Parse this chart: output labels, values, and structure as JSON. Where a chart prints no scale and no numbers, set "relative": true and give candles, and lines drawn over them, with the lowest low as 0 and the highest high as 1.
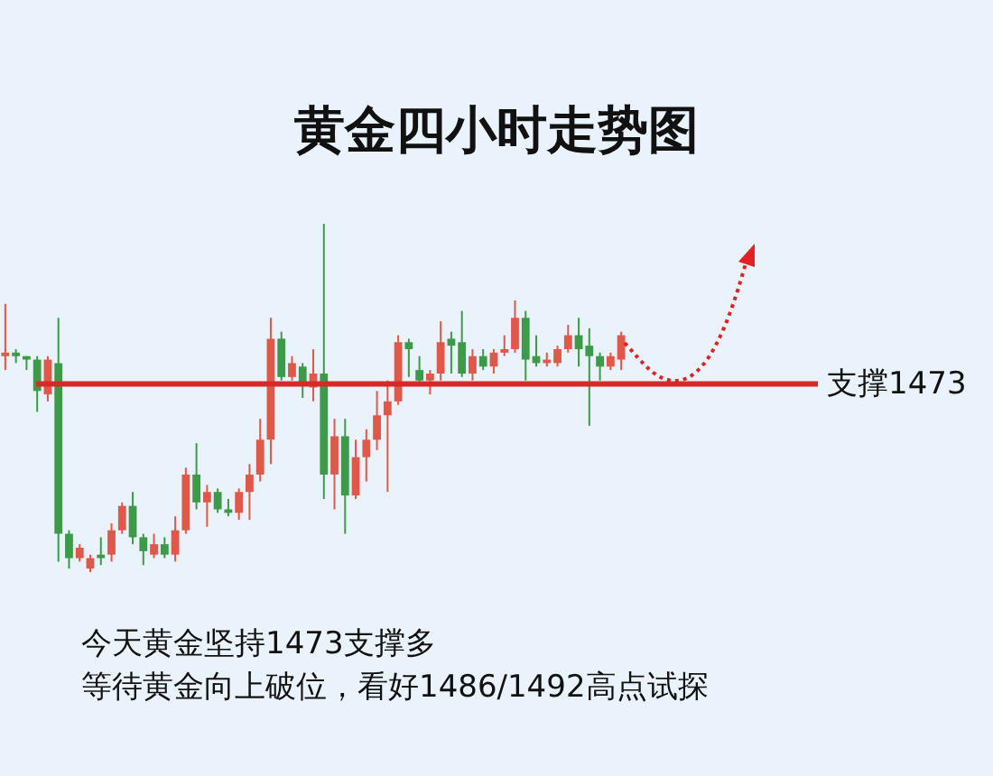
{
  "chart_data": {
    "type": "candlestick",
    "title": "黄金四小时走势图",
    "relative": true,
    "categories": [
      null,
      null,
      null,
      null,
      null,
      null,
      null,
      null,
      null,
      null,
      null,
      null,
      null,
      null,
      null,
      null,
      null,
      null,
      null,
      null,
      null,
      null,
      null,
      null,
      null,
      null,
      null,
      null,
      null,
      null,
      null,
      null,
      null,
      null,
      null,
      null,
      null,
      null,
      null,
      null,
      null,
      null,
      null,
      null,
      null,
      null,
      null,
      null,
      null,
      null,
      null,
      null,
      null,
      null,
      null,
      null,
      null,
      null,
      null
    ],
    "ohlc": [
      [
        0.62,
        0.77,
        0.58,
        0.63
      ],
      [
        0.63,
        0.64,
        0.6,
        0.62
      ],
      [
        0.62,
        0.62,
        0.58,
        0.61
      ],
      [
        0.61,
        0.62,
        0.46,
        0.52
      ],
      [
        0.51,
        0.62,
        0.49,
        0.61
      ],
      [
        0.6,
        0.73,
        0.03,
        0.11
      ],
      [
        0.11,
        0.12,
        0.01,
        0.04
      ],
      [
        0.04,
        0.08,
        0.03,
        0.07
      ],
      [
        0.01,
        0.05,
        0,
        0.04
      ],
      [
        0.05,
        0.1,
        0.02,
        0.04
      ],
      [
        0.05,
        0.14,
        0.03,
        0.12
      ],
      [
        0.12,
        0.2,
        0.11,
        0.19
      ],
      [
        0.19,
        0.23,
        0.08,
        0.1
      ],
      [
        0.1,
        0.11,
        0.02,
        0.06
      ],
      [
        0.05,
        0.11,
        0.04,
        0.08
      ],
      [
        0.08,
        0.1,
        0.04,
        0.05
      ],
      [
        0.05,
        0.16,
        0.03,
        0.12
      ],
      [
        0.12,
        0.3,
        0.11,
        0.28
      ],
      [
        0.28,
        0.37,
        0.18,
        0.2
      ],
      [
        0.2,
        0.25,
        0.13,
        0.23
      ],
      [
        0.23,
        0.24,
        0.17,
        0.18
      ],
      [
        0.18,
        0.21,
        0.16,
        0.17
      ],
      [
        0.17,
        0.24,
        0.15,
        0.23
      ],
      [
        0.23,
        0.31,
        0.15,
        0.28
      ],
      [
        0.28,
        0.44,
        0.26,
        0.38
      ],
      [
        0.38,
        0.73,
        0.31,
        0.67
      ],
      [
        0.67,
        0.69,
        0.55,
        0.56
      ],
      [
        0.56,
        0.62,
        0.55,
        0.6
      ],
      [
        0.59,
        0.6,
        0.5,
        0.54
      ],
      [
        0.53,
        0.64,
        0.49,
        0.57
      ],
      [
        0.57,
        1,
        0.21,
        0.28
      ],
      [
        0.28,
        0.44,
        0.18,
        0.39
      ],
      [
        0.39,
        0.44,
        0.11,
        0.22
      ],
      [
        0.22,
        0.38,
        0.21,
        0.33
      ],
      [
        0.33,
        0.41,
        0.26,
        0.38
      ],
      [
        0.38,
        0.52,
        0.35,
        0.45
      ],
      [
        0.45,
        0.55,
        0.23,
        0.49
      ],
      [
        0.49,
        0.68,
        0.48,
        0.66
      ],
      [
        0.66,
        0.67,
        0.56,
        0.64
      ],
      [
        0.58,
        0.62,
        0.54,
        0.55
      ],
      [
        0.55,
        0.58,
        0.51,
        0.57
      ],
      [
        0.57,
        0.72,
        0.55,
        0.66
      ],
      [
        0.67,
        0.69,
        0.57,
        0.65
      ],
      [
        0.66,
        0.75,
        0.56,
        0.57
      ],
      [
        0.57,
        0.64,
        0.55,
        0.62
      ],
      [
        0.62,
        0.64,
        0.58,
        0.59
      ],
      [
        0.59,
        0.64,
        0.57,
        0.63
      ],
      [
        0.63,
        0.68,
        0.62,
        0.64
      ],
      [
        0.64,
        0.78,
        0.63,
        0.73
      ],
      [
        0.73,
        0.75,
        0.55,
        0.61
      ],
      [
        0.62,
        0.68,
        0.59,
        0.6
      ],
      [
        0.6,
        0.63,
        0.59,
        0.61
      ],
      [
        0.6,
        0.65,
        0.59,
        0.64
      ],
      [
        0.64,
        0.71,
        0.63,
        0.68
      ],
      [
        0.68,
        0.73,
        0.59,
        0.64
      ],
      [
        0.65,
        0.7,
        0.42,
        0.62
      ],
      [
        0.62,
        0.63,
        0.55,
        0.59
      ],
      [
        0.59,
        0.63,
        0.58,
        0.62
      ],
      [
        0.61,
        0.69,
        0.58,
        0.68
      ]
    ],
    "colors": [
      "#e0584a",
      "#3c9a48",
      "#3c9a48",
      "#3c9a48",
      "#e0584a",
      "#3c9a48",
      "#3c9a48",
      "#e0584a",
      "#e0584a",
      "#3c9a48",
      "#e0584a",
      "#e0584a",
      "#3c9a48",
      "#3c9a48",
      "#e0584a",
      "#3c9a48",
      "#e0584a",
      "#e0584a",
      "#3c9a48",
      "#e0584a",
      "#3c9a48",
      "#3c9a48",
      "#e0584a",
      "#e0584a",
      "#e0584a",
      "#e0584a",
      "#3c9a48",
      "#e0584a",
      "#3c9a48",
      "#e0584a",
      "#3c9a48",
      "#e0584a",
      "#3c9a48",
      "#e0584a",
      "#e0584a",
      "#e0584a",
      "#e0584a",
      "#e0584a",
      "#3c9a48",
      "#3c9a48",
      "#e0584a",
      "#e0584a",
      "#3c9a48",
      "#3c9a48",
      "#e0584a",
      "#3c9a48",
      "#e0584a",
      "#e0584a",
      "#e0584a",
      "#3c9a48",
      "#3c9a48",
      "#e0584a",
      "#e0584a",
      "#e0584a",
      "#3c9a48",
      "#3c9a48",
      "#3c9a48",
      "#e0584a",
      "#e0584a"
    ],
    "ref_lines": [
      {
        "axis": "y",
        "value": 0.54,
        "label": "支撑1473",
        "color": "#d42a2a"
      }
    ],
    "annotations": [
      "今天黄金坚持1473支撑多",
      "等待黄金向上破位，看好1486/1492高点试探"
    ]
  }
}
